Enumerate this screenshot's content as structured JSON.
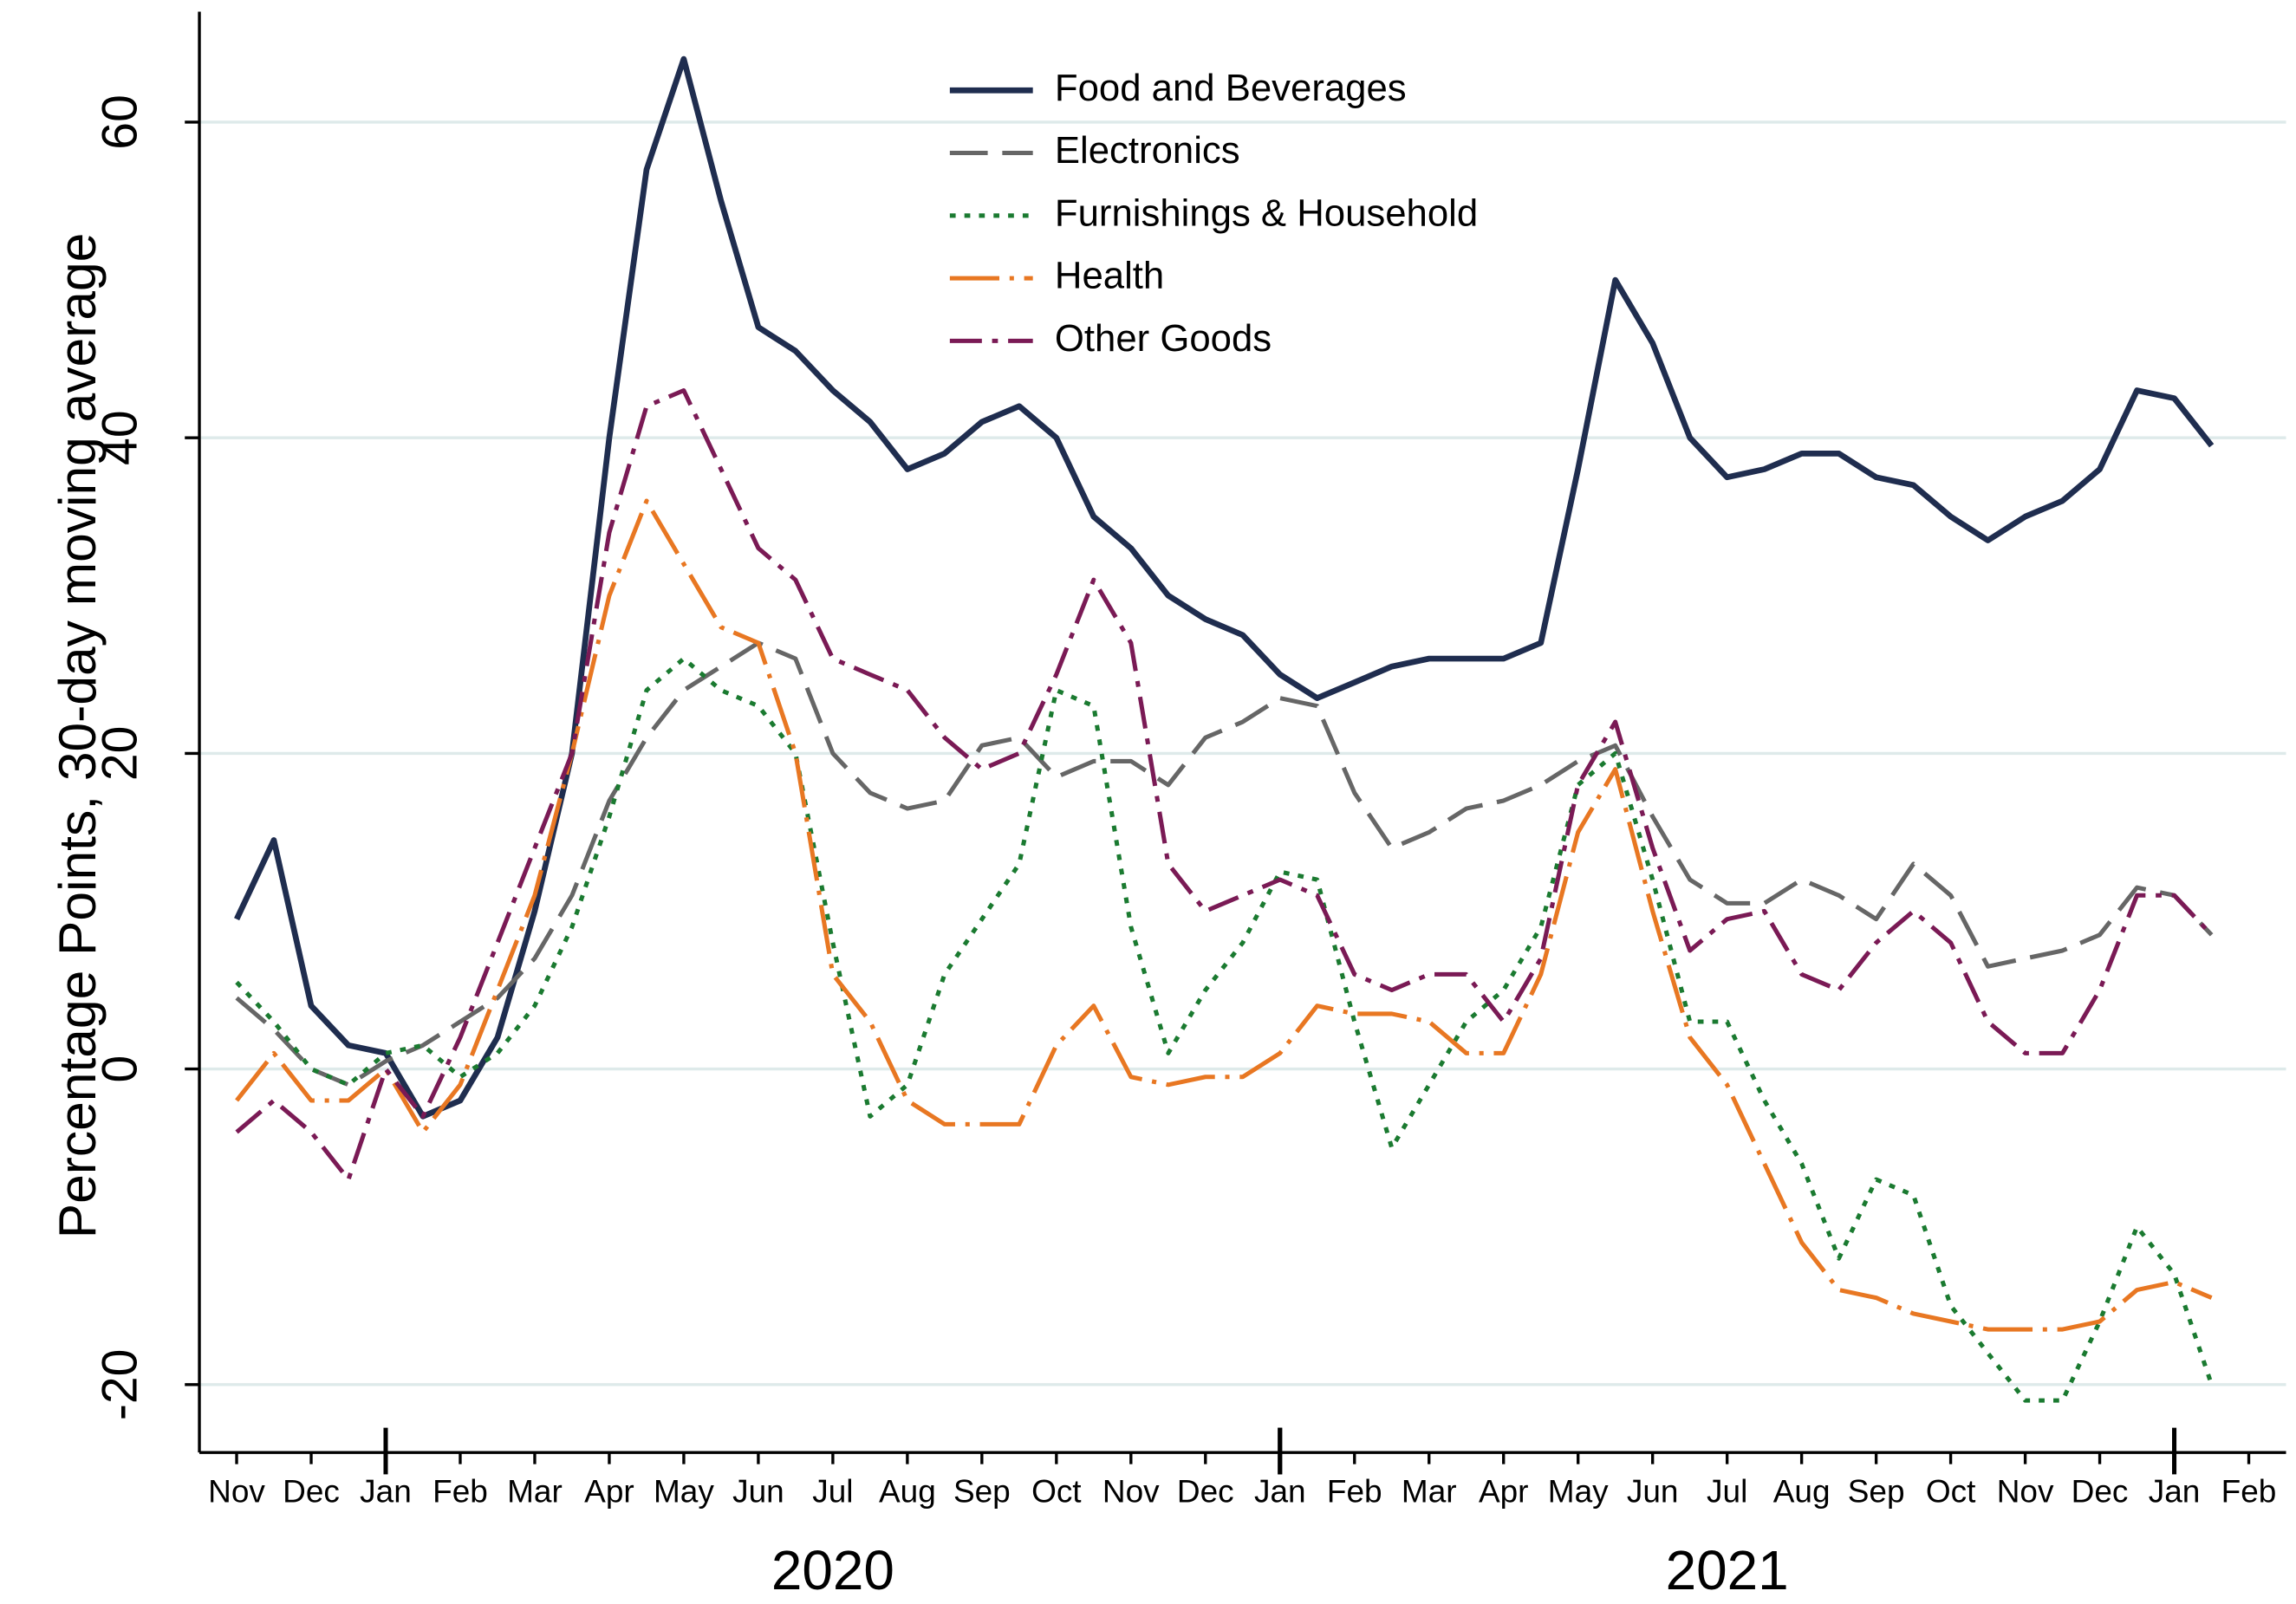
{
  "chart_data": {
    "type": "line",
    "ylabel": "Percentage Points, 30-day moving average",
    "x": [
      0,
      0.5,
      1,
      1.5,
      2,
      2.5,
      3,
      3.5,
      4,
      4.5,
      5,
      5.5,
      6,
      6.5,
      7,
      7.5,
      8,
      8.5,
      9,
      9.5,
      10,
      10.5,
      11,
      11.5,
      12,
      12.5,
      13,
      13.5,
      14,
      14.5,
      15,
      15.5,
      16,
      16.5,
      17,
      17.5,
      18,
      18.5,
      19,
      19.5,
      20,
      20.5,
      21,
      21.5,
      22,
      22.5,
      23,
      23.5,
      24,
      24.5,
      25,
      25.5,
      26,
      26.5
    ],
    "xlim": [
      -0.5,
      27.5
    ],
    "xticks": [
      {
        "value": 0,
        "label": "Nov"
      },
      {
        "value": 1,
        "label": "Dec"
      },
      {
        "value": 2,
        "label": "Jan"
      },
      {
        "value": 3,
        "label": "Feb"
      },
      {
        "value": 4,
        "label": "Mar"
      },
      {
        "value": 5,
        "label": "Apr"
      },
      {
        "value": 6,
        "label": "May"
      },
      {
        "value": 7,
        "label": "Jun"
      },
      {
        "value": 8,
        "label": "Jul"
      },
      {
        "value": 9,
        "label": "Aug"
      },
      {
        "value": 10,
        "label": "Sep"
      },
      {
        "value": 11,
        "label": "Oct"
      },
      {
        "value": 12,
        "label": "Nov"
      },
      {
        "value": 13,
        "label": "Dec"
      },
      {
        "value": 14,
        "label": "Jan"
      },
      {
        "value": 15,
        "label": "Feb"
      },
      {
        "value": 16,
        "label": "Mar"
      },
      {
        "value": 17,
        "label": "Apr"
      },
      {
        "value": 18,
        "label": "May"
      },
      {
        "value": 19,
        "label": "Jun"
      },
      {
        "value": 20,
        "label": "Jul"
      },
      {
        "value": 21,
        "label": "Aug"
      },
      {
        "value": 22,
        "label": "Sep"
      },
      {
        "value": 23,
        "label": "Oct"
      },
      {
        "value": 24,
        "label": "Nov"
      },
      {
        "value": 25,
        "label": "Dec"
      },
      {
        "value": 26,
        "label": "Jan"
      },
      {
        "value": 27,
        "label": "Feb"
      }
    ],
    "year_groups": [
      {
        "label": "2020",
        "from": 2,
        "to": 14
      },
      {
        "label": "2021",
        "from": 14,
        "to": 26
      }
    ],
    "ylim": [
      -24.3,
      67
    ],
    "yticks": [
      -20,
      0,
      20,
      40,
      60
    ],
    "grid": true,
    "legend": "top-center",
    "series": [
      {
        "name": "Food and Beverages",
        "color": "#1f2d4f",
        "style": "solid",
        "values": [
          9.5,
          14.5,
          4,
          1.5,
          1,
          -3,
          -2,
          2,
          10,
          20,
          40,
          57,
          64,
          55,
          47,
          45.5,
          43,
          41,
          38,
          39,
          41,
          42,
          40,
          35,
          33,
          30,
          28.5,
          27.5,
          25,
          23.5,
          24.5,
          25.5,
          26,
          26,
          26,
          27,
          38,
          50,
          46,
          40,
          37.5,
          38,
          39,
          39,
          37.5,
          37,
          35,
          33.5,
          35,
          36,
          38,
          43,
          42.5,
          39.5
        ]
      },
      {
        "name": "Electronics",
        "color": "#666666",
        "style": "dash",
        "values": [
          4.5,
          2.5,
          0,
          -1,
          0.5,
          1.5,
          3,
          4.5,
          7,
          11,
          17,
          21,
          24,
          25.5,
          27,
          26,
          20,
          17.5,
          16.5,
          17,
          20.5,
          21,
          18.5,
          19.5,
          19.5,
          18,
          21,
          22,
          23.5,
          23,
          17.5,
          14,
          15,
          16.5,
          17,
          18,
          19.5,
          20.5,
          16,
          12,
          10.5,
          10.5,
          12,
          11,
          9.5,
          13,
          11,
          6.5,
          7,
          7.5,
          8.5,
          11.5,
          11,
          8.5
        ]
      },
      {
        "name": "Furnishings & Household",
        "color": "#1a7a30",
        "style": "dot",
        "values": [
          5.5,
          3,
          0,
          -1,
          1,
          1.5,
          -0.5,
          1,
          4,
          9,
          16,
          24,
          26,
          24,
          23,
          20,
          8,
          -3,
          -1,
          6,
          9.5,
          13,
          24,
          23,
          9,
          1,
          5,
          8,
          12.5,
          12,
          3,
          -5,
          -1,
          3,
          5,
          9,
          18,
          20,
          12,
          3,
          3,
          -2,
          -6,
          -12,
          -7,
          -8,
          -15,
          -18,
          -21,
          -21,
          -16,
          -10,
          -13,
          -20
        ]
      },
      {
        "name": "Health",
        "color": "#e87722",
        "style": "longdash",
        "values": [
          -2,
          1,
          -2,
          -2,
          0,
          -4,
          -1,
          5,
          11,
          20,
          30,
          36,
          32,
          28,
          27,
          20,
          6,
          3,
          -2,
          -3.5,
          -3.5,
          -3.5,
          1.5,
          4,
          -0.5,
          -1,
          -0.5,
          -0.5,
          1,
          4,
          3.5,
          3.5,
          3,
          1,
          1,
          6,
          15,
          19,
          10,
          2,
          -1,
          -6,
          -11,
          -14,
          -14.5,
          -15.5,
          -16,
          -16.5,
          -16.5,
          -16.5,
          -16,
          -14,
          -13.5,
          -14.5
        ]
      },
      {
        "name": "Other Goods",
        "color": "#7a1a55",
        "style": "dashdot",
        "values": [
          -4,
          -2,
          -4,
          -7,
          0,
          -3,
          2,
          8,
          14,
          20,
          34,
          42,
          43,
          38,
          33,
          31,
          26,
          25,
          24,
          21,
          19,
          20,
          25,
          31,
          27,
          13,
          10,
          11,
          12,
          11,
          6,
          5,
          6,
          6,
          3,
          7,
          18,
          22,
          14,
          7.5,
          9.5,
          10,
          6,
          5,
          8,
          10,
          8,
          3,
          1,
          1,
          5,
          11,
          11,
          8.5
        ]
      }
    ]
  }
}
